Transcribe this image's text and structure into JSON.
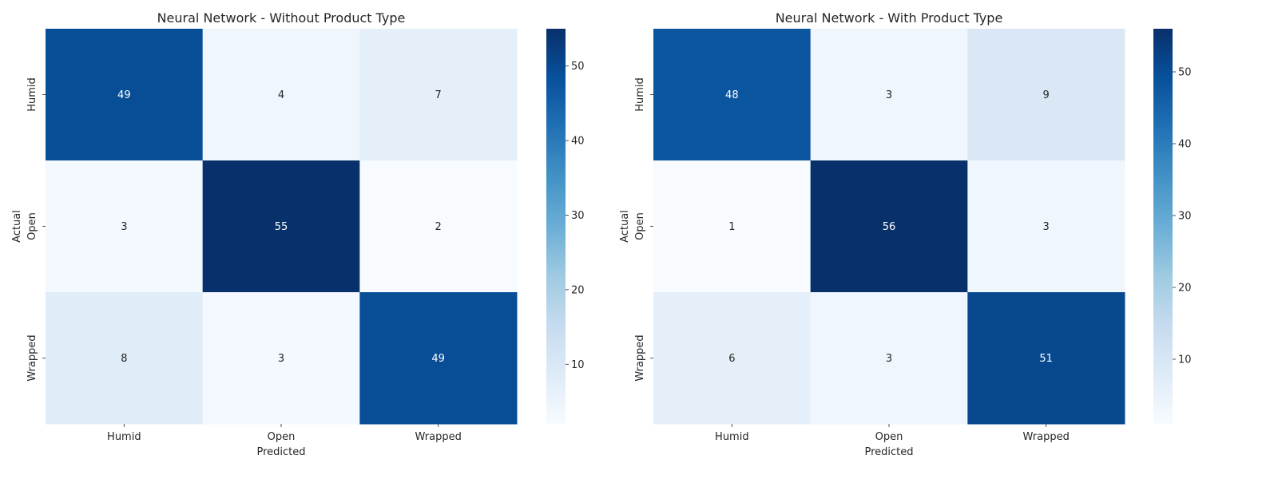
{
  "chart_data": [
    {
      "type": "heatmap",
      "title": "Neural Network - Without Product Type",
      "xlabel": "Predicted",
      "ylabel": "Actual",
      "x_categories": [
        "Humid",
        "Open",
        "Wrapped"
      ],
      "y_categories": [
        "Humid",
        "Open",
        "Wrapped"
      ],
      "matrix": [
        [
          49,
          4,
          7
        ],
        [
          3,
          55,
          2
        ],
        [
          8,
          3,
          49
        ]
      ],
      "colormap": "Blues",
      "colorbar": {
        "min": 2,
        "max": 55,
        "ticks": [
          10,
          20,
          30,
          40,
          50
        ]
      }
    },
    {
      "type": "heatmap",
      "title": "Neural Network - With Product Type",
      "xlabel": "Predicted",
      "ylabel": "Actual",
      "x_categories": [
        "Humid",
        "Open",
        "Wrapped"
      ],
      "y_categories": [
        "Humid",
        "Open",
        "Wrapped"
      ],
      "matrix": [
        [
          48,
          3,
          9
        ],
        [
          1,
          56,
          3
        ],
        [
          6,
          3,
          51
        ]
      ],
      "colormap": "Blues",
      "colorbar": {
        "min": 1,
        "max": 56,
        "ticks": [
          10,
          20,
          30,
          40,
          50
        ]
      }
    }
  ]
}
